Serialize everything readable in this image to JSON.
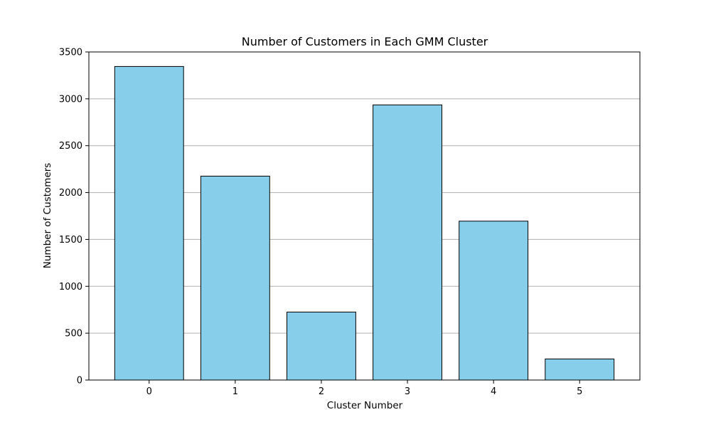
{
  "chart_data": {
    "type": "bar",
    "title": "Number of Customers in Each GMM Cluster",
    "xlabel": "Cluster Number",
    "ylabel": "Number of Customers",
    "categories": [
      "0",
      "1",
      "2",
      "3",
      "4",
      "5"
    ],
    "values": [
      3345,
      2175,
      725,
      2935,
      1695,
      225
    ],
    "ylim": [
      0,
      3500
    ],
    "yticks": [
      0,
      500,
      1000,
      1500,
      2000,
      2500,
      3000,
      3500
    ],
    "grid": "y",
    "legend": "none",
    "colors": {
      "bar_fill": "#87CEEB",
      "bar_edge": "#000000",
      "grid": "#b0b0b0",
      "axis": "#000000"
    }
  }
}
